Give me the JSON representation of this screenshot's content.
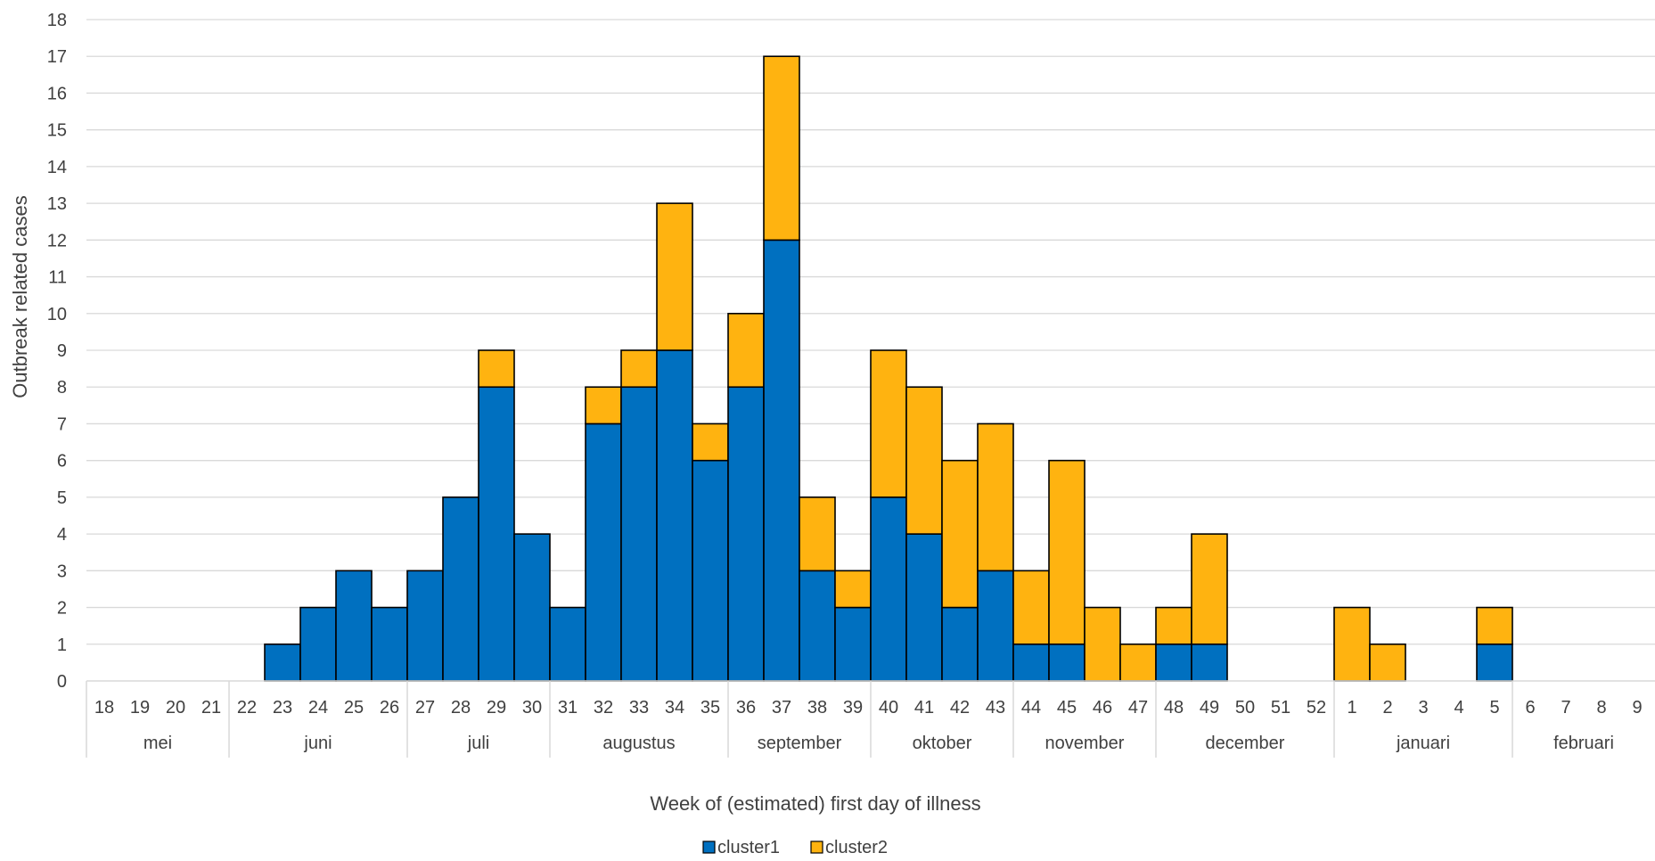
{
  "chart_data": {
    "type": "bar",
    "stacked": true,
    "title": "",
    "ylabel": "Outbreak related cases",
    "xlabel": "Week of (estimated) first day of illness",
    "ylim": [
      0,
      18
    ],
    "yticks": [
      "0",
      "1",
      "2",
      "3",
      "4",
      "5",
      "6",
      "7",
      "8",
      "9",
      "10",
      "11",
      "12",
      "13",
      "14",
      "15",
      "16",
      "17",
      "18"
    ],
    "grid": true,
    "legend_position": "bottom",
    "categories": [
      "18",
      "19",
      "20",
      "21",
      "22",
      "23",
      "24",
      "25",
      "26",
      "27",
      "28",
      "29",
      "30",
      "31",
      "32",
      "33",
      "34",
      "35",
      "36",
      "37",
      "38",
      "39",
      "40",
      "41",
      "42",
      "43",
      "44",
      "45",
      "46",
      "47",
      "48",
      "49",
      "50",
      "51",
      "52",
      "1",
      "2",
      "3",
      "4",
      "5",
      "6",
      "7",
      "8",
      "9"
    ],
    "month_groups": [
      {
        "label": "mei",
        "count": 4
      },
      {
        "label": "juni",
        "count": 5
      },
      {
        "label": "juli",
        "count": 4
      },
      {
        "label": "augustus",
        "count": 5
      },
      {
        "label": "september",
        "count": 4
      },
      {
        "label": "oktober",
        "count": 4
      },
      {
        "label": "november",
        "count": 4
      },
      {
        "label": "december",
        "count": 5
      },
      {
        "label": "januari",
        "count": 5
      },
      {
        "label": "februari",
        "count": 4
      }
    ],
    "series": [
      {
        "name": "cluster1",
        "color": "#0070C0",
        "values": [
          0,
          0,
          0,
          0,
          0,
          1,
          2,
          3,
          2,
          3,
          5,
          8,
          4,
          2,
          7,
          8,
          9,
          6,
          8,
          12,
          3,
          2,
          5,
          4,
          2,
          3,
          1,
          1,
          0,
          0,
          1,
          1,
          0,
          0,
          0,
          0,
          0,
          0,
          0,
          1,
          0,
          0,
          0,
          0
        ]
      },
      {
        "name": "cluster2",
        "color": "#FFB310",
        "values": [
          0,
          0,
          0,
          0,
          0,
          0,
          0,
          0,
          0,
          0,
          0,
          1,
          0,
          0,
          1,
          1,
          4,
          1,
          2,
          5,
          2,
          1,
          4,
          4,
          4,
          4,
          2,
          5,
          2,
          1,
          1,
          3,
          0,
          0,
          0,
          2,
          1,
          0,
          0,
          1,
          0,
          0,
          0,
          0
        ]
      }
    ]
  }
}
